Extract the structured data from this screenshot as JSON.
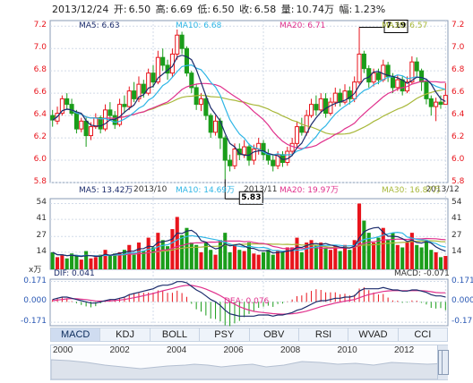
{
  "header": {
    "date": "2013/12/24",
    "open_label": "开:",
    "open": "6.50",
    "high_label": "高:",
    "high": "6.69",
    "low_label": "低:",
    "low": "6.50",
    "close_label": "收:",
    "close": "6.58",
    "volume_label": "量:",
    "volume": "10.74万",
    "change_label": "幅:",
    "change": "1.23%"
  },
  "colors": {
    "up": "#e8141c",
    "down": "#1a9d1a",
    "ma5": "#1c2c6c",
    "ma10": "#2fb6e6",
    "ma20": "#e0308c",
    "ma30": "#a8b83a",
    "grid": "#d2dbe8",
    "axis": "#8a9bb5"
  },
  "price_legend": {
    "ma5": "MA5: 6.63",
    "ma10": "MA10: 6.68",
    "ma20": "MA20: 6.71",
    "ma30": "MA30: 6.57"
  },
  "volume_legend": {
    "ma5": "MA5: 13.42万",
    "ma10": "MA10: 14.69万",
    "ma20": "MA20: 19.97万",
    "ma30": "MA30: 16.87万"
  },
  "macd_legend": {
    "dif": "DIF: 0.041",
    "dea": "DEA: 0.076",
    "macd": "MACD: -0.071"
  },
  "price_yticks": [
    "7.2",
    "7.0",
    "6.8",
    "6.6",
    "6.4",
    "6.2",
    "6.0",
    "5.8"
  ],
  "volume_yticks": [
    "54",
    "41",
    "27",
    "14"
  ],
  "volume_unit": "x万",
  "macd_yticks": [
    "0.171",
    "0.000",
    "-0.171"
  ],
  "xticks": [
    "2013/10",
    "2013/11",
    "2013/12"
  ],
  "annotations": {
    "max": "7.19",
    "min": "5.83"
  },
  "tabs": [
    "MACD",
    "KDJ",
    "BOLL",
    "PSY",
    "OBV",
    "RSI",
    "WVAD",
    "CCI"
  ],
  "active_tab": "MACD",
  "timeline_years": [
    "2000",
    "2002",
    "2004",
    "2006",
    "2008",
    "2010",
    "2012"
  ],
  "chart_data": {
    "type": "candlestick",
    "y_range": [
      5.8,
      7.25
    ],
    "volume_range": [
      0,
      58
    ],
    "macd_range": [
      -0.2,
      0.19
    ],
    "x_ticks": [
      {
        "label": "2013/10",
        "index": 21
      },
      {
        "label": "2013/11",
        "index": 44
      },
      {
        "label": "2013/12",
        "index": 82
      }
    ],
    "ohlc": [
      [
        6.4,
        6.36,
        6.45,
        6.3
      ],
      [
        6.35,
        6.42,
        6.48,
        6.32
      ],
      [
        6.42,
        6.55,
        6.58,
        6.4
      ],
      [
        6.55,
        6.5,
        6.6,
        6.45
      ],
      [
        6.5,
        6.42,
        6.55,
        6.4
      ],
      [
        6.42,
        6.28,
        6.45,
        6.24
      ],
      [
        6.28,
        6.35,
        6.38,
        6.25
      ],
      [
        6.35,
        6.22,
        6.38,
        6.12
      ],
      [
        6.22,
        6.3,
        6.34,
        6.18
      ],
      [
        6.3,
        6.38,
        6.42,
        6.28
      ],
      [
        6.38,
        6.28,
        6.4,
        6.24
      ],
      [
        6.28,
        6.45,
        6.5,
        6.26
      ],
      [
        6.45,
        6.4,
        6.52,
        6.36
      ],
      [
        6.4,
        6.32,
        6.44,
        6.28
      ],
      [
        6.32,
        6.5,
        6.55,
        6.3
      ],
      [
        6.5,
        6.48,
        6.58,
        6.42
      ],
      [
        6.48,
        6.62,
        6.66,
        6.45
      ],
      [
        6.62,
        6.55,
        6.7,
        6.52
      ],
      [
        6.55,
        6.68,
        6.75,
        6.52
      ],
      [
        6.68,
        6.6,
        6.72,
        6.56
      ],
      [
        6.6,
        6.78,
        6.82,
        6.58
      ],
      [
        6.78,
        6.7,
        6.85,
        6.65
      ],
      [
        6.7,
        6.92,
        6.98,
        6.68
      ],
      [
        6.92,
        6.85,
        7.0,
        6.8
      ],
      [
        6.85,
        6.78,
        6.9,
        6.72
      ],
      [
        6.78,
        6.95,
        7.0,
        6.74
      ],
      [
        6.95,
        7.12,
        7.17,
        6.9
      ],
      [
        7.12,
        7.0,
        7.15,
        6.95
      ],
      [
        7.0,
        6.78,
        7.02,
        6.75
      ],
      [
        6.78,
        6.65,
        6.8,
        6.6
      ],
      [
        6.65,
        6.5,
        6.68,
        6.45
      ],
      [
        6.5,
        6.55,
        6.6,
        6.44
      ],
      [
        6.55,
        6.4,
        6.58,
        6.36
      ],
      [
        6.4,
        6.25,
        6.42,
        6.2
      ],
      [
        6.25,
        6.35,
        6.4,
        6.22
      ],
      [
        6.35,
        6.2,
        6.38,
        6.1
      ],
      [
        6.2,
        6.0,
        6.22,
        5.83
      ],
      [
        6.0,
        5.95,
        6.05,
        5.9
      ],
      [
        5.95,
        6.1,
        6.15,
        5.92
      ],
      [
        6.1,
        6.05,
        6.15,
        6.0
      ],
      [
        6.05,
        6.12,
        6.18,
        6.02
      ],
      [
        6.12,
        6.0,
        6.15,
        5.95
      ],
      [
        6.0,
        6.1,
        6.14,
        5.96
      ],
      [
        6.1,
        6.15,
        6.2,
        6.05
      ],
      [
        6.15,
        6.05,
        6.18,
        6.0
      ],
      [
        6.05,
        6.0,
        6.1,
        5.96
      ],
      [
        6.0,
        5.95,
        6.05,
        5.9
      ],
      [
        5.95,
        6.05,
        6.08,
        5.92
      ],
      [
        6.05,
        5.98,
        6.08,
        5.94
      ],
      [
        5.98,
        6.08,
        6.12,
        5.95
      ],
      [
        6.08,
        6.15,
        6.2,
        6.05
      ],
      [
        6.15,
        6.3,
        6.35,
        6.12
      ],
      [
        6.3,
        6.25,
        6.38,
        6.22
      ],
      [
        6.25,
        6.4,
        6.45,
        6.22
      ],
      [
        6.4,
        6.5,
        6.55,
        6.38
      ],
      [
        6.5,
        6.45,
        6.58,
        6.4
      ],
      [
        6.45,
        6.55,
        6.6,
        6.42
      ],
      [
        6.55,
        6.42,
        6.6,
        6.38
      ],
      [
        6.42,
        6.52,
        6.56,
        6.4
      ],
      [
        6.52,
        6.6,
        6.65,
        6.48
      ],
      [
        6.6,
        6.52,
        6.64,
        6.48
      ],
      [
        6.52,
        6.62,
        6.68,
        6.5
      ],
      [
        6.62,
        6.55,
        6.66,
        6.5
      ],
      [
        6.55,
        6.7,
        6.75,
        6.52
      ],
      [
        6.7,
        6.95,
        7.19,
        6.68
      ],
      [
        6.95,
        6.82,
        6.98,
        6.78
      ],
      [
        6.82,
        6.7,
        6.85,
        6.65
      ],
      [
        6.7,
        6.78,
        6.82,
        6.66
      ],
      [
        6.78,
        6.72,
        6.82,
        6.68
      ],
      [
        6.72,
        6.85,
        6.9,
        6.7
      ],
      [
        6.85,
        6.75,
        6.88,
        6.7
      ],
      [
        6.75,
        6.65,
        6.78,
        6.6
      ],
      [
        6.65,
        6.72,
        6.76,
        6.62
      ],
      [
        6.72,
        6.62,
        6.75,
        6.58
      ],
      [
        6.62,
        6.7,
        6.75,
        6.6
      ],
      [
        6.7,
        6.88,
        6.93,
        6.68
      ],
      [
        6.88,
        6.8,
        6.92,
        6.75
      ],
      [
        6.8,
        6.7,
        6.82,
        6.62
      ],
      [
        6.7,
        6.55,
        6.72,
        6.5
      ],
      [
        6.55,
        6.48,
        6.58,
        6.4
      ],
      [
        6.48,
        6.52,
        6.56,
        6.35
      ],
      [
        6.52,
        6.5,
        6.58,
        6.46
      ],
      [
        6.5,
        6.58,
        6.69,
        6.5
      ]
    ],
    "volume": [
      14,
      10,
      12,
      9,
      13,
      11,
      8,
      15,
      9,
      10,
      12,
      16,
      11,
      13,
      14,
      16,
      20,
      12,
      22,
      15,
      26,
      18,
      30,
      24,
      19,
      33,
      43,
      28,
      34,
      22,
      20,
      14,
      22,
      16,
      12,
      24,
      30,
      14,
      20,
      16,
      15,
      22,
      13,
      12,
      14,
      16,
      12,
      15,
      14,
      18,
      18,
      26,
      14,
      22,
      24,
      20,
      22,
      18,
      16,
      20,
      15,
      20,
      16,
      24,
      54,
      40,
      30,
      22,
      26,
      34,
      24,
      30,
      20,
      18,
      22,
      30,
      20,
      18,
      24,
      16,
      14,
      10,
      11
    ],
    "macd": {
      "dif": [
        0.02,
        0.03,
        0.04,
        0.04,
        0.03,
        0.02,
        0.01,
        0.0,
        -0.01,
        -0.01,
        0.0,
        0.01,
        0.02,
        0.02,
        0.03,
        0.04,
        0.06,
        0.07,
        0.08,
        0.09,
        0.1,
        0.11,
        0.13,
        0.14,
        0.14,
        0.15,
        0.17,
        0.17,
        0.16,
        0.13,
        0.1,
        0.08,
        0.05,
        0.02,
        0.0,
        -0.03,
        -0.07,
        -0.1,
        -0.11,
        -0.12,
        -0.12,
        -0.12,
        -0.12,
        -0.11,
        -0.11,
        -0.11,
        -0.12,
        -0.11,
        -0.11,
        -0.1,
        -0.09,
        -0.07,
        -0.06,
        -0.04,
        -0.02,
        0.0,
        0.01,
        0.01,
        0.02,
        0.03,
        0.03,
        0.04,
        0.04,
        0.05,
        0.09,
        0.11,
        0.11,
        0.11,
        0.11,
        0.12,
        0.11,
        0.1,
        0.1,
        0.09,
        0.09,
        0.1,
        0.1,
        0.09,
        0.08,
        0.06,
        0.05,
        0.05,
        0.041
      ],
      "dea": [
        0.01,
        0.015,
        0.02,
        0.025,
        0.027,
        0.026,
        0.023,
        0.019,
        0.013,
        0.008,
        0.006,
        0.006,
        0.009,
        0.011,
        0.015,
        0.02,
        0.027,
        0.035,
        0.043,
        0.052,
        0.061,
        0.071,
        0.082,
        0.093,
        0.102,
        0.112,
        0.123,
        0.133,
        0.139,
        0.138,
        0.131,
        0.121,
        0.107,
        0.09,
        0.072,
        0.052,
        0.028,
        0.002,
        -0.02,
        -0.04,
        -0.056,
        -0.069,
        -0.079,
        -0.085,
        -0.09,
        -0.094,
        -0.099,
        -0.101,
        -0.103,
        -0.102,
        -0.1,
        -0.094,
        -0.087,
        -0.078,
        -0.066,
        -0.053,
        -0.04,
        -0.03,
        -0.02,
        -0.01,
        -0.002,
        0.006,
        0.013,
        0.02,
        0.034,
        0.049,
        0.061,
        0.071,
        0.079,
        0.087,
        0.092,
        0.094,
        0.095,
        0.094,
        0.093,
        0.094,
        0.095,
        0.094,
        0.091,
        0.085,
        0.078,
        0.076,
        0.076
      ]
    }
  }
}
